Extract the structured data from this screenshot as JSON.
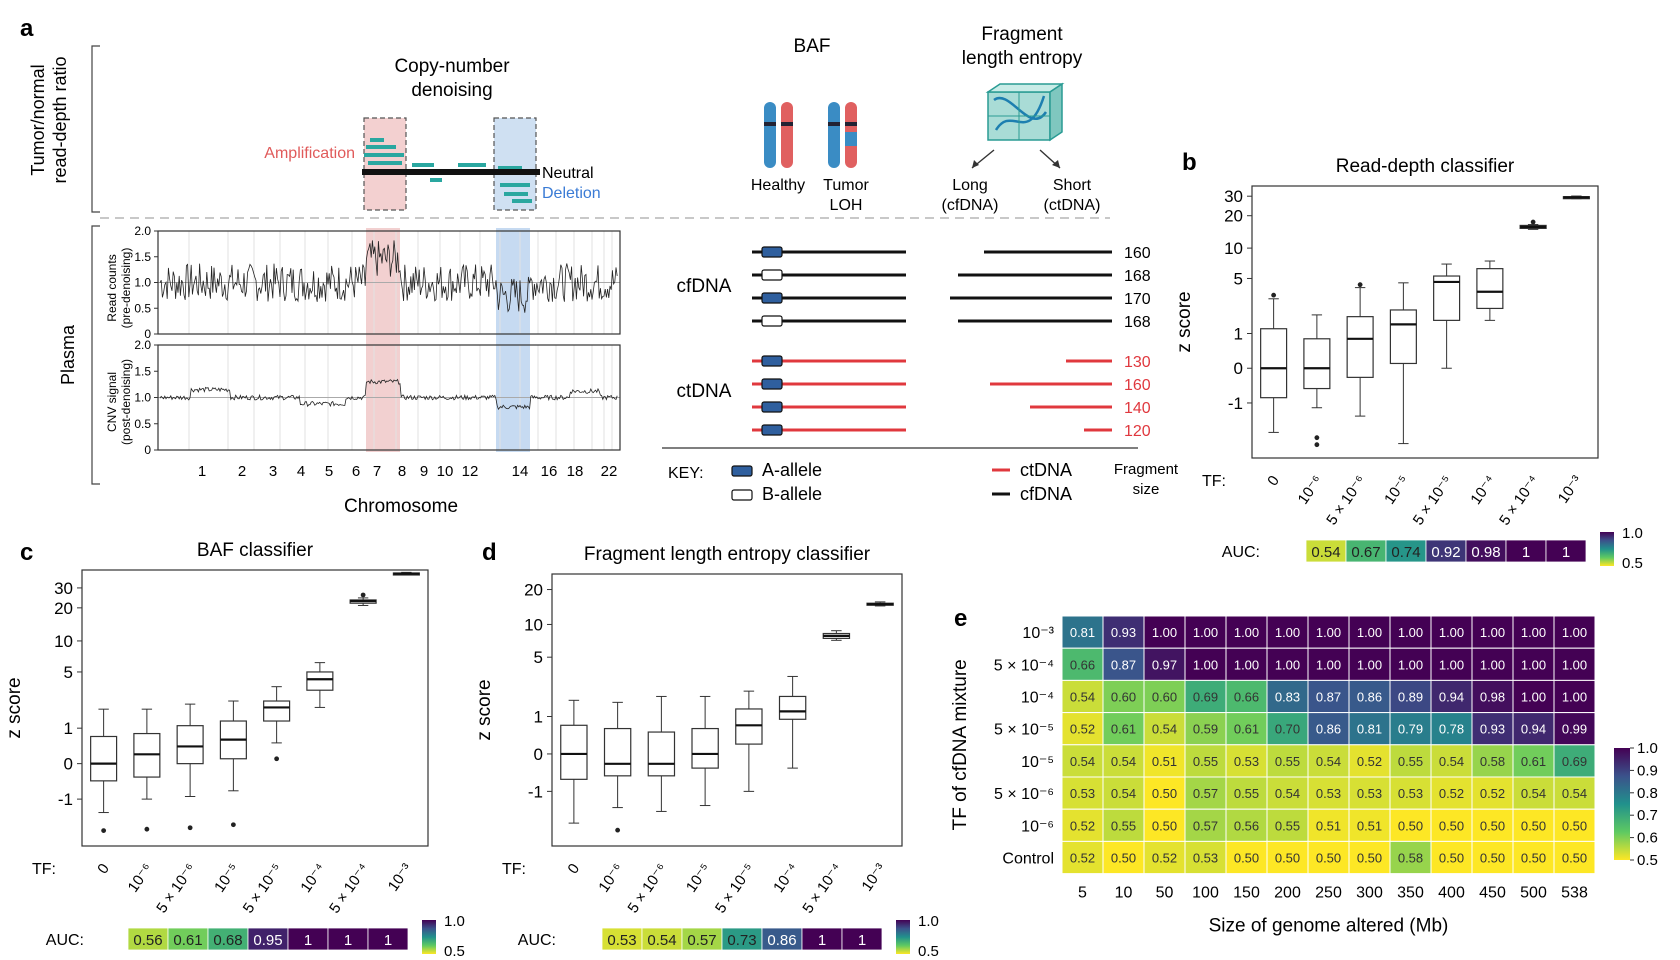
{
  "panel_a": {
    "label": "a",
    "left_axis_label": [
      "Tumor/normal",
      "read-depth ratio"
    ],
    "plasma_label": "Plasma",
    "denoise_title": [
      "Copy-number",
      "denoising"
    ],
    "amplification": "Amplification",
    "neutral": "Neutral",
    "deletion": "Deletion",
    "track1_ylabel": [
      "Read counts",
      "(pre-denoising)"
    ],
    "track2_ylabel": [
      "CNV signal",
      "(post-denoising)"
    ],
    "track_yticks": [
      "2.0",
      "1.5",
      "1.0",
      "0.5",
      "0"
    ],
    "chromosomes": [
      "1",
      "2",
      "3",
      "4",
      "5",
      "6",
      "7",
      "8",
      "9",
      "10",
      "12",
      "14",
      "16",
      "18",
      "22"
    ],
    "xlabel": "Chromosome",
    "baf_title": "BAF",
    "healthy": "Healthy",
    "tumor_loh": [
      "Tumor",
      "LOH"
    ],
    "fle_title": [
      "Fragment",
      "length entropy"
    ],
    "long": [
      "Long",
      "(cfDNA)"
    ],
    "short": [
      "Short",
      "(ctDNA)"
    ],
    "cfdna": "cfDNA",
    "ctdna": "ctDNA",
    "cfdna_sizes": [
      "160",
      "168",
      "170",
      "168"
    ],
    "ctdna_sizes": [
      "130",
      "160",
      "140",
      "120"
    ],
    "key_label": "KEY:",
    "key_a": "A-allele",
    "key_b": "B-allele",
    "key_ct": "ctDNA",
    "key_cf": "cfDNA",
    "fragment_size": [
      "Fragment",
      "size"
    ]
  },
  "chart_data": [
    {
      "panel": "b",
      "type": "box",
      "title": "Read-depth classifier",
      "ylabel": "z score",
      "ytick_labels": [
        "30",
        "20",
        "10",
        "5",
        "1",
        "0",
        "-1"
      ],
      "tf_label": "TF:",
      "categories": [
        "0",
        "10⁻⁶",
        "5 × 10⁻⁶",
        "10⁻⁵",
        "5 × 10⁻⁵",
        "10⁻⁴",
        "5 × 10⁻⁴",
        "10⁻³"
      ],
      "boxes": [
        {
          "min": -2.6,
          "q1": -0.8,
          "median": 0.0,
          "q3": 1.2,
          "max": 3.0,
          "outliers": [
            3.3
          ]
        },
        {
          "min": -1.2,
          "q1": -0.5,
          "median": 0.0,
          "q3": 0.8,
          "max": 1.9,
          "outliers": [
            -3.0,
            -3.6
          ]
        },
        {
          "min": -1.6,
          "q1": -0.2,
          "median": 0.8,
          "q3": 1.8,
          "max": 4.0,
          "outliers": [
            4.3
          ]
        },
        {
          "min": -3.5,
          "q1": 0.1,
          "median": 1.4,
          "q3": 2.2,
          "max": 4.5,
          "outliers": []
        },
        {
          "min": 0.0,
          "q1": 1.6,
          "median": 4.6,
          "q3": 5.3,
          "max": 7.0,
          "outliers": []
        },
        {
          "min": 1.6,
          "q1": 2.3,
          "median": 3.6,
          "q3": 6.3,
          "max": 7.5,
          "outliers": []
        },
        {
          "min": 15.0,
          "q1": 15.3,
          "median": 15.8,
          "q3": 16.3,
          "max": 16.6,
          "outliers": [
            17.5
          ]
        },
        {
          "min": 28.5,
          "q1": 28.9,
          "median": 29.3,
          "q3": 29.7,
          "max": 30.1,
          "outliers": []
        }
      ],
      "auc_label": "AUC:",
      "auc": [
        "0.54",
        "0.67",
        "0.74",
        "0.92",
        "0.98",
        "1",
        "1"
      ],
      "colorbar_ticks": [
        "1.0",
        "0.5"
      ]
    },
    {
      "panel": "c",
      "type": "box",
      "title": "BAF classifier",
      "ylabel": "z score",
      "ytick_labels": [
        "30",
        "20",
        "10",
        "5",
        "1",
        "0",
        "-1"
      ],
      "tf_label": "TF:",
      "categories": [
        "0",
        "10⁻⁶",
        "5 × 10⁻⁶",
        "10⁻⁵",
        "5 × 10⁻⁵",
        "10⁻⁴",
        "5 × 10⁻⁴",
        "10⁻³"
      ],
      "boxes": [
        {
          "min": -1.6,
          "q1": -0.4,
          "median": 0.0,
          "q3": 0.7,
          "max": 1.9,
          "outliers": [
            -2.7
          ]
        },
        {
          "min": -1.0,
          "q1": -0.3,
          "median": 0.2,
          "q3": 0.8,
          "max": 1.9,
          "outliers": [
            -2.6
          ]
        },
        {
          "min": -0.9,
          "q1": 0.0,
          "median": 0.4,
          "q3": 1.1,
          "max": 2.2,
          "outliers": [
            -2.5
          ]
        },
        {
          "min": -0.7,
          "q1": 0.1,
          "median": 0.6,
          "q3": 1.3,
          "max": 2.4,
          "outliers": [
            -2.3
          ]
        },
        {
          "min": 0.5,
          "q1": 1.3,
          "median": 2.0,
          "q3": 2.4,
          "max": 3.5,
          "outliers": [
            0.1
          ]
        },
        {
          "min": 2.0,
          "q1": 3.2,
          "median": 4.2,
          "q3": 5.0,
          "max": 6.2,
          "outliers": []
        },
        {
          "min": 21.0,
          "q1": 22.0,
          "median": 23.0,
          "q3": 23.5,
          "max": 24.5,
          "outliers": [
            26.0
          ]
        },
        {
          "min": 39.0,
          "q1": 39.5,
          "median": 40.0,
          "q3": 40.5,
          "max": 41.0,
          "outliers": []
        }
      ],
      "auc_label": "AUC:",
      "auc": [
        "0.56",
        "0.61",
        "0.68",
        "0.95",
        "1",
        "1",
        "1"
      ],
      "colorbar_ticks": [
        "1.0",
        "0.5"
      ]
    },
    {
      "panel": "d",
      "type": "box",
      "title": "Fragment length entropy classifier",
      "ylabel": "z score",
      "ytick_labels": [
        "20",
        "10",
        "5",
        "1",
        "0",
        "-1"
      ],
      "tf_label": "TF:",
      "categories": [
        "0",
        "10⁻⁶",
        "5 × 10⁻⁶",
        "10⁻⁵",
        "5 × 10⁻⁵",
        "10⁻⁴",
        "5 × 10⁻⁴",
        "10⁻³"
      ],
      "boxes": [
        {
          "min": -2.6,
          "q1": -0.6,
          "median": 0.0,
          "q3": 0.7,
          "max": 1.7,
          "outliers": []
        },
        {
          "min": -1.7,
          "q1": -0.5,
          "median": -0.2,
          "q3": 0.6,
          "max": 1.6,
          "outliers": [
            -3.1
          ]
        },
        {
          "min": -1.9,
          "q1": -0.5,
          "median": -0.2,
          "q3": 0.5,
          "max": 1.9,
          "outliers": []
        },
        {
          "min": -1.6,
          "q1": -0.3,
          "median": 0.0,
          "q3": 0.6,
          "max": 1.9,
          "outliers": []
        },
        {
          "min": -1.0,
          "q1": 0.2,
          "median": 0.7,
          "q3": 1.3,
          "max": 2.2,
          "outliers": []
        },
        {
          "min": -0.3,
          "q1": 0.9,
          "median": 1.2,
          "q3": 1.9,
          "max": 3.2,
          "outliers": []
        },
        {
          "min": 7.2,
          "q1": 7.5,
          "median": 7.9,
          "q3": 8.3,
          "max": 8.8,
          "outliers": []
        },
        {
          "min": 14.5,
          "q1": 14.8,
          "median": 15.0,
          "q3": 15.3,
          "max": 15.7,
          "outliers": []
        }
      ],
      "auc_label": "AUC:",
      "auc": [
        "0.53",
        "0.54",
        "0.57",
        "0.73",
        "0.86",
        "1",
        "1"
      ],
      "colorbar_ticks": [
        "1.0",
        "0.5"
      ]
    },
    {
      "panel": "e",
      "type": "heatmap",
      "ylabel": "TF of cfDNA mixture",
      "xlabel": "Size of genome altered (Mb)",
      "x": [
        "5",
        "10",
        "50",
        "100",
        "150",
        "200",
        "250",
        "300",
        "350",
        "400",
        "450",
        "500",
        "538"
      ],
      "y": [
        "10⁻³",
        "5 × 10⁻⁴",
        "10⁻⁴",
        "5 × 10⁻⁵",
        "10⁻⁵",
        "5 × 10⁻⁶",
        "10⁻⁶",
        "Control"
      ],
      "values": [
        [
          "0.81",
          "0.93",
          "1.00",
          "1.00",
          "1.00",
          "1.00",
          "1.00",
          "1.00",
          "1.00",
          "1.00",
          "1.00",
          "1.00",
          "1.00"
        ],
        [
          "0.66",
          "0.87",
          "0.97",
          "1.00",
          "1.00",
          "1.00",
          "1.00",
          "1.00",
          "1.00",
          "1.00",
          "1.00",
          "1.00",
          "1.00"
        ],
        [
          "0.54",
          "0.60",
          "0.60",
          "0.69",
          "0.66",
          "0.83",
          "0.87",
          "0.86",
          "0.89",
          "0.94",
          "0.98",
          "1.00",
          "1.00"
        ],
        [
          "0.52",
          "0.61",
          "0.54",
          "0.59",
          "0.61",
          "0.70",
          "0.86",
          "0.81",
          "0.79",
          "0.78",
          "0.93",
          "0.94",
          "0.99"
        ],
        [
          "0.54",
          "0.54",
          "0.51",
          "0.55",
          "0.53",
          "0.55",
          "0.54",
          "0.52",
          "0.55",
          "0.54",
          "0.58",
          "0.61",
          "0.69"
        ],
        [
          "0.53",
          "0.54",
          "0.50",
          "0.57",
          "0.55",
          "0.54",
          "0.53",
          "0.53",
          "0.53",
          "0.52",
          "0.52",
          "0.54",
          "0.54"
        ],
        [
          "0.52",
          "0.55",
          "0.50",
          "0.57",
          "0.56",
          "0.55",
          "0.51",
          "0.51",
          "0.50",
          "0.50",
          "0.50",
          "0.50",
          "0.50"
        ],
        [
          "0.52",
          "0.50",
          "0.52",
          "0.53",
          "0.50",
          "0.50",
          "0.50",
          "0.50",
          "0.58",
          "0.50",
          "0.50",
          "0.50",
          "0.50"
        ]
      ],
      "colorbar_ticks": [
        "1.0",
        "0.9",
        "0.8",
        "0.7",
        "0.6",
        "0.5"
      ],
      "color_range": [
        0.5,
        1.0
      ]
    }
  ]
}
